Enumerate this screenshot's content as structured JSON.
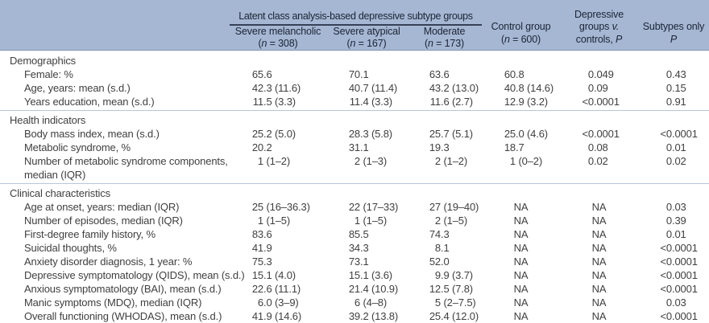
{
  "colors": {
    "header_bg": "#a6b7d4",
    "header_text": "#1b2433",
    "spanner_rule": "#364156",
    "header_border": "#8196ba",
    "body_text": "#3f3f3f",
    "section_divider": "#b7c5da"
  },
  "header": {
    "spanner": "Latent class analysis-based depressive subtype groups",
    "columns": [
      {
        "line1": "Severe melancholic",
        "line2": "(*n* = 308)"
      },
      {
        "line1": "Severe atypical",
        "line2": "(*n* = 167)"
      },
      {
        "line1": "Moderate",
        "line2": "(*n* = 173)"
      },
      {
        "lines": [
          "Control group",
          "(*n* = 600)"
        ]
      },
      {
        "lines": [
          "Depressive",
          "groups *v.*",
          "controls, *P*"
        ]
      },
      {
        "lines": [
          "Subtypes only",
          "*P*"
        ]
      }
    ]
  },
  "table": {
    "sections": [
      {
        "title": "Demographics",
        "divider_before": false,
        "rows": [
          {
            "label": "Female: %",
            "values": [
              "65.6",
              "70.1",
              "63.6",
              "60.8",
              "0.049",
              "0.43"
            ]
          },
          {
            "label": "Age, years: mean (s.d.)",
            "values": [
              "42.3 (11.6)",
              "40.7 (11.4)",
              "43.2 (13.0)",
              "40.8 (14.6)",
              "0.09",
              "0.15"
            ]
          },
          {
            "label": "Years education, mean (s.d.)",
            "values": [
              "11.5 (3.3)",
              "11.4 (3.3)",
              "11.6 (2.7)",
              "12.9 (3.2)",
              "<0.0001",
              "0.91"
            ]
          }
        ]
      },
      {
        "title": "Health indicators",
        "divider_before": true,
        "rows": [
          {
            "label": "Body mass index, mean (s.d.)",
            "values": [
              "25.2 (5.0)",
              "28.3 (5.8)",
              "25.7 (5.1)",
              "25.0 (4.6)",
              "<0.0001",
              "<0.0001"
            ]
          },
          {
            "label": "Metabolic syndrome, %",
            "values": [
              "20.2",
              "31.1",
              "19.3",
              "18.7",
              "0.08",
              "0.01"
            ]
          },
          {
            "label": "Number of metabolic syndrome components,\nmedian (IQR)",
            "values": [
              "1 (1–2)",
              "2 (1–3)",
              "2 (1–2)",
              "1 (0–2)",
              "0.02",
              "0.02"
            ]
          }
        ]
      },
      {
        "title": "Clinical characteristics",
        "divider_before": true,
        "rows": [
          {
            "label": "Age at onset, years: median (IQR)",
            "values": [
              "25 (16–36.3)",
              "22 (17–33)",
              "27 (19–40)",
              "NA",
              "NA",
              "0.03"
            ]
          },
          {
            "label": "Number of episodes, median (IQR)",
            "values": [
              "1 (1–5)",
              "1 (1–5)",
              "2 (1–5)",
              "NA",
              "NA",
              "0.39"
            ]
          },
          {
            "label": "First-degree family history, %",
            "values": [
              "83.6",
              "85.5",
              "74.3",
              "NA",
              "NA",
              "0.01"
            ]
          },
          {
            "label": "Suicidal thoughts, %",
            "values": [
              "41.9",
              "34.3",
              "8.1",
              "NA",
              "NA",
              "<0.0001"
            ]
          },
          {
            "label": "Anxiety disorder diagnosis, 1 year: %",
            "values": [
              "75.3",
              "73.1",
              "52.0",
              "NA",
              "NA",
              "<0.0001"
            ]
          },
          {
            "label": "Depressive symptomatology (QIDS), mean (s.d.)",
            "values": [
              "15.1 (4.0)",
              "15.1 (3.6)",
              "9.9 (3.7)",
              "NA",
              "NA",
              "<0.0001"
            ]
          },
          {
            "label": "Anxious symptomatology (BAI), mean (s.d.)",
            "values": [
              "22.6 (11.1)",
              "21.4 (10.9)",
              "12.5 (7.8)",
              "NA",
              "NA",
              "<0.0001"
            ]
          },
          {
            "label": "Manic symptoms (MDQ), median (IQR)",
            "values": [
              "6.0 (3–9)",
              "6 (4–8)",
              "5 (2–7.5)",
              "NA",
              "NA",
              "0.03"
            ]
          },
          {
            "label": "Overall functioning (WHODAS), mean (s.d.)",
            "values": [
              "41.9 (14.6)",
              "39.2 (13.8)",
              "25.4 (12.0)",
              "NA",
              "NA",
              "<0.0001"
            ]
          }
        ]
      }
    ]
  }
}
